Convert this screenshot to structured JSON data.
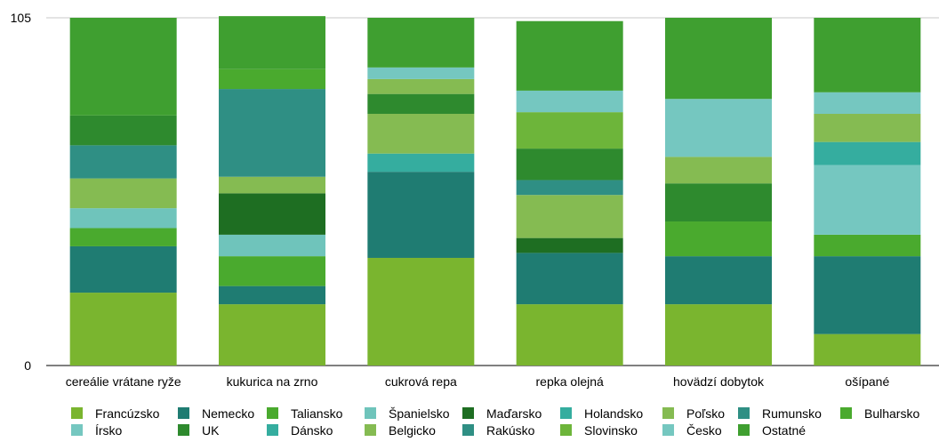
{
  "chart_data": {
    "type": "bar",
    "stacked": true,
    "title": "",
    "xlabel": "",
    "ylabel": "",
    "ylim": [
      0,
      105
    ],
    "yticks": [
      0,
      105
    ],
    "grid": false,
    "legend_position": "bottom",
    "categories": [
      "cereálie vrátane ryže",
      "kukurica na zrno",
      "cukrová repa",
      "repka olejná",
      "hovädzí dobytok",
      "ošípané"
    ],
    "series": [
      {
        "name": "Francúzsko",
        "color": "#7ab52f",
        "values": [
          22,
          18.5,
          32.5,
          18.5,
          18.5,
          9.5
        ]
      },
      {
        "name": "Nemecko",
        "color": "#1f7c72",
        "values": [
          14,
          5.5,
          26,
          15.5,
          14.5,
          23.5
        ]
      },
      {
        "name": "Taliansko",
        "color": "#4aaa2e",
        "values": [
          5.5,
          9,
          0,
          0,
          10.5,
          6.5
        ]
      },
      {
        "name": "Španielsko",
        "color": "#6fc4bb",
        "values": [
          6,
          6.5,
          0,
          0,
          0,
          0
        ]
      },
      {
        "name": "Maďarsko",
        "color": "#1e6e22",
        "values": [
          0,
          12.5,
          0,
          4.5,
          0,
          0
        ]
      },
      {
        "name": "Holandsko",
        "color": "#35ad9f",
        "values": [
          0,
          0,
          5.5,
          0,
          0,
          0
        ]
      },
      {
        "name": "Poľsko",
        "color": "#85bb52",
        "values": [
          9,
          5,
          12,
          13,
          0,
          0
        ]
      },
      {
        "name": "Rumunsko",
        "color": "#2f8f84",
        "values": [
          10,
          26.5,
          0,
          4.5,
          0,
          0
        ]
      },
      {
        "name": "Bulharsko",
        "color": "#4aaa2e",
        "values": [
          0,
          6,
          0,
          0,
          0,
          0
        ]
      },
      {
        "name": "Írsko",
        "color": "#75c7c0",
        "values": [
          0,
          0,
          0,
          0,
          0,
          21
        ]
      },
      {
        "name": "UK",
        "color": "#2e8a2e",
        "values": [
          9,
          0,
          6,
          9.5,
          11.5,
          0
        ]
      },
      {
        "name": "Dánsko",
        "color": "#35ad9f",
        "values": [
          0,
          0,
          0,
          0,
          0,
          7
        ]
      },
      {
        "name": "Belgicko",
        "color": "#85bb52",
        "values": [
          0,
          0,
          4.5,
          0,
          8,
          8.5
        ]
      },
      {
        "name": "Rakúsko",
        "color": "#2f8f84",
        "values": [
          0,
          0,
          0,
          0,
          0,
          0
        ]
      },
      {
        "name": "Slovinsko",
        "color": "#6db53a",
        "values": [
          0,
          0,
          0,
          11,
          0,
          0
        ]
      },
      {
        "name": "Česko",
        "color": "#75c7c0",
        "values": [
          0,
          0,
          3.5,
          6.5,
          17.5,
          6.5
        ]
      },
      {
        "name": "Ostatné",
        "color": "#3f9f30",
        "values": [
          29.5,
          16,
          15,
          21,
          24.5,
          22.5
        ]
      }
    ]
  }
}
